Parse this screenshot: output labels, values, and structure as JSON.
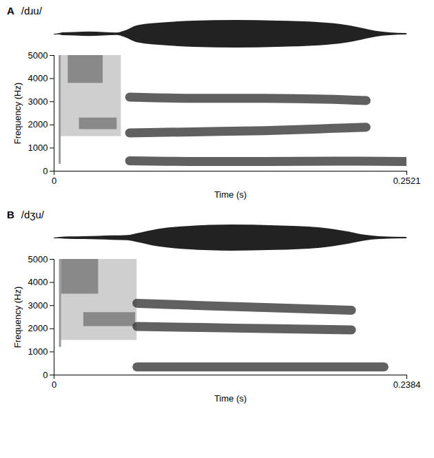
{
  "chart_data": [
    {
      "type": "spectrogram",
      "panel": "A",
      "title": "/dɹu/",
      "x_label": "Time (s)",
      "y_label": "Frequency (Hz)",
      "xlim": [
        0,
        0.2521
      ],
      "xticks": [
        0,
        0.2521
      ],
      "ylim": [
        0,
        5000
      ],
      "yticks": [
        0,
        1000,
        2000,
        3000,
        4000,
        5000
      ],
      "waveform": {
        "x": [
          0,
          0.004,
          0.006,
          0.015,
          0.025,
          0.035,
          0.045,
          0.05,
          0.06,
          0.08,
          0.1,
          0.13,
          0.16,
          0.19,
          0.21,
          0.22,
          0.23,
          0.24,
          0.2521
        ],
        "values": [
          0,
          0.05,
          0.1,
          0.12,
          0.15,
          0.12,
          0.08,
          0.2,
          0.6,
          0.8,
          0.9,
          0.95,
          0.9,
          0.8,
          0.6,
          0.4,
          0.2,
          0.1,
          0.05
        ]
      },
      "burst": {
        "x": 0.004,
        "y": [
          300,
          5000
        ]
      },
      "frication": [
        {
          "x": [
            0.004,
            0.048
          ],
          "y": [
            1500,
            5000
          ]
        }
      ],
      "frication_peaks": [
        {
          "x": [
            0.01,
            0.035
          ],
          "y": [
            3800,
            5000
          ]
        },
        {
          "x": [
            0.018,
            0.045
          ],
          "y": [
            1800,
            2300
          ]
        }
      ],
      "formants": [
        {
          "x": [
            0.054,
            0.1,
            0.15,
            0.2,
            0.2521
          ],
          "values": [
            450,
            420,
            420,
            430,
            420
          ]
        },
        {
          "x": [
            0.054,
            0.1,
            0.15,
            0.2,
            0.223
          ],
          "values": [
            1650,
            1700,
            1750,
            1850,
            1900
          ]
        },
        {
          "x": [
            0.054,
            0.1,
            0.15,
            0.2,
            0.223
          ],
          "values": [
            3200,
            3150,
            3150,
            3100,
            3050
          ]
        }
      ]
    },
    {
      "type": "spectrogram",
      "panel": "B",
      "title": "/dʒu/",
      "x_label": "Time (s)",
      "y_label": "Frequency (Hz)",
      "xlim": [
        0,
        0.2384
      ],
      "xticks": [
        0,
        0.2384
      ],
      "ylim": [
        0,
        5000
      ],
      "yticks": [
        0,
        1000,
        2000,
        3000,
        4000,
        5000
      ],
      "waveform": {
        "x": [
          0,
          0.004,
          0.01,
          0.02,
          0.03,
          0.04,
          0.05,
          0.056,
          0.07,
          0.09,
          0.12,
          0.15,
          0.18,
          0.2,
          0.21,
          0.22,
          0.2384
        ],
        "values": [
          0,
          0.05,
          0.08,
          0.1,
          0.12,
          0.15,
          0.18,
          0.3,
          0.6,
          0.8,
          0.9,
          0.85,
          0.7,
          0.4,
          0.2,
          0.1,
          0.05
        ]
      },
      "burst": {
        "x": 0.004,
        "y": [
          1200,
          5000
        ]
      },
      "frication": [
        {
          "x": [
            0.004,
            0.056
          ],
          "y": [
            1500,
            5000
          ]
        }
      ],
      "frication_peaks": [
        {
          "x": [
            0.005,
            0.03
          ],
          "y": [
            3500,
            5000
          ]
        },
        {
          "x": [
            0.02,
            0.055
          ],
          "y": [
            2100,
            2700
          ]
        }
      ],
      "formants": [
        {
          "x": [
            0.056,
            0.1,
            0.15,
            0.2,
            0.223
          ],
          "values": [
            350,
            350,
            350,
            350,
            350
          ]
        },
        {
          "x": [
            0.056,
            0.1,
            0.15,
            0.201
          ],
          "values": [
            2100,
            2050,
            2000,
            1950
          ]
        },
        {
          "x": [
            0.056,
            0.1,
            0.15,
            0.201
          ],
          "values": [
            3100,
            3000,
            2900,
            2800
          ]
        }
      ]
    }
  ]
}
